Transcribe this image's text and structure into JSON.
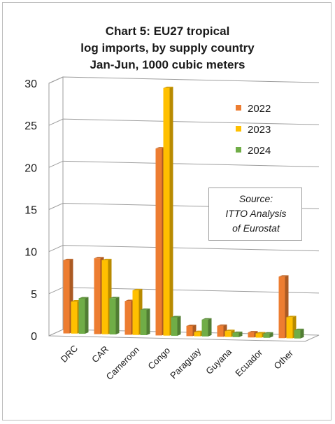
{
  "chart_data": {
    "type": "bar",
    "title_lines": [
      "Chart 5: EU27 tropical",
      "log imports, by supply country",
      "Jan-Jun, 1000 cubic meters"
    ],
    "categories": [
      "DRC",
      "CAR",
      "Cameroon",
      "Congo",
      "Paraguay",
      "Guyana",
      "Ecuador",
      "Other"
    ],
    "series": [
      {
        "name": "2022",
        "color": "#ED7D31",
        "values": [
          8.7,
          9.0,
          4.0,
          22.2,
          1.2,
          1.3,
          0.6,
          7.3
        ]
      },
      {
        "name": "2023",
        "color": "#FFC000",
        "values": [
          3.8,
          8.8,
          5.3,
          29.4,
          0.5,
          0.7,
          0.5,
          2.5
        ]
      },
      {
        "name": "2024",
        "color": "#70AD47",
        "values": [
          4.2,
          4.3,
          3.0,
          2.2,
          2.0,
          0.5,
          0.5,
          1.0
        ]
      }
    ],
    "ylim": [
      0,
      30
    ],
    "yticks": [
      0,
      5,
      10,
      15,
      20,
      25,
      30
    ],
    "grid": true,
    "legend_position": "top-right",
    "annotation_lines": [
      "Source:",
      "ITTO  Analysis",
      "of Eurostat"
    ]
  }
}
